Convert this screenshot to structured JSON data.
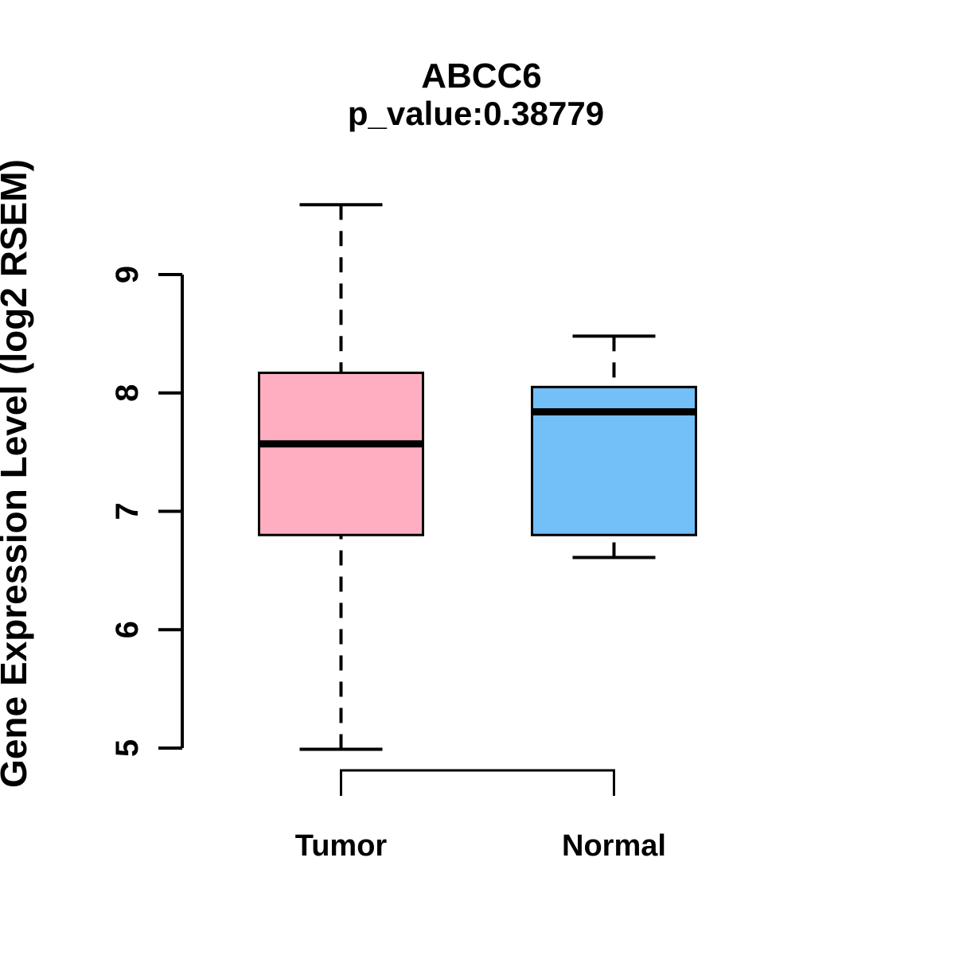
{
  "figure": {
    "background": "#FFFFFF",
    "foreground": "#000000"
  },
  "chart_data": {
    "type": "boxplot",
    "title": "ABCC6",
    "subtitle": "p_value:0.38779",
    "gene": "ABCC6",
    "p_value": "0.38779",
    "xlabel": "",
    "ylabel": "Gene Expression Level (log2 RSEM)",
    "ylim": [
      5,
      9
    ],
    "yticks": [
      5,
      6,
      7,
      8,
      9
    ],
    "grid": false,
    "legend_position": "none",
    "categories": [
      "Tumor",
      "Normal"
    ],
    "series": [
      {
        "name": "Tumor",
        "fill_color": "#FFAEC1",
        "whisker_low": 4.99,
        "q1": 6.8,
        "median": 7.57,
        "q3": 8.17,
        "whisker_high": 9.59,
        "outliers": []
      },
      {
        "name": "Normal",
        "fill_color": "#73BFF8",
        "whisker_low": 6.61,
        "q1": 6.8,
        "median": 7.84,
        "q3": 8.05,
        "whisker_high": 8.48,
        "outliers": []
      }
    ],
    "stroke_color": "#000000",
    "comparison_bracket": {
      "from": "Tumor",
      "to": "Normal"
    }
  }
}
